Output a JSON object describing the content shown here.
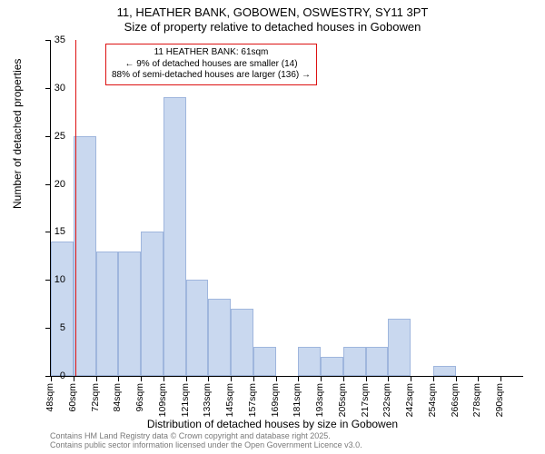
{
  "title": {
    "line1": "11, HEATHER BANK, GOBOWEN, OSWESTRY, SY11 3PT",
    "line2": "Size of property relative to detached houses in Gobowen"
  },
  "chart": {
    "type": "histogram",
    "ylabel": "Number of detached properties",
    "xlabel": "Distribution of detached houses by size in Gobowen",
    "ylim": [
      0,
      35
    ],
    "ytick_step": 5,
    "bar_color": "#c9d8ef",
    "bar_border": "#9fb6dd",
    "background_color": "#ffffff",
    "refline_color": "#d11",
    "refline_at_category_index": 1,
    "categories": [
      "48sqm",
      "60sqm",
      "72sqm",
      "84sqm",
      "96sqm",
      "109sqm",
      "121sqm",
      "133sqm",
      "145sqm",
      "157sqm",
      "169sqm",
      "181sqm",
      "193sqm",
      "205sqm",
      "217sqm",
      "232sqm",
      "242sqm",
      "254sqm",
      "266sqm",
      "278sqm",
      "290sqm"
    ],
    "bar_boundaries_count": 21,
    "values": [
      14,
      25,
      13,
      13,
      15,
      29,
      10,
      8,
      7,
      3,
      0,
      3,
      2,
      3,
      3,
      6,
      0,
      1,
      0,
      0,
      0
    ]
  },
  "annotation": {
    "line1": "11 HEATHER BANK: 61sqm",
    "line2": "← 9% of detached houses are smaller (14)",
    "line3": "88% of semi-detached houses are larger (136) →",
    "border_color": "#d11"
  },
  "footer": {
    "line1": "Contains HM Land Registry data © Crown copyright and database right 2025.",
    "line2": "Contains public sector information licensed under the Open Government Licence v3.0."
  }
}
